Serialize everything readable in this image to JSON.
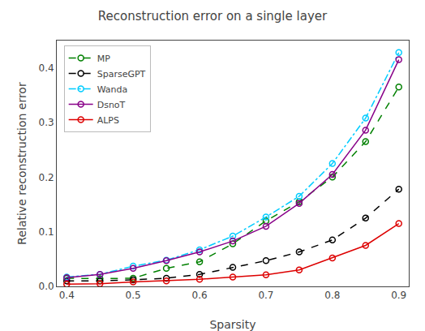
{
  "chart_data": {
    "type": "line",
    "title": "Reconstruction error on a single layer",
    "xlabel": "Sparsity",
    "ylabel": "Relative reconstruction error",
    "x": [
      0.4,
      0.45,
      0.5,
      0.55,
      0.6,
      0.65,
      0.7,
      0.75,
      0.8,
      0.85,
      0.9
    ],
    "series": [
      {
        "name": "MP",
        "color": "#008000",
        "line_style": "dashed",
        "marker": "circle",
        "values": [
          0.015,
          0.014,
          0.015,
          0.033,
          0.045,
          0.078,
          0.12,
          0.155,
          0.2,
          0.265,
          0.365
        ]
      },
      {
        "name": "SparseGPT",
        "color": "#000000",
        "line_style": "dashed",
        "marker": "circle",
        "values": [
          0.01,
          0.01,
          0.012,
          0.015,
          0.022,
          0.035,
          0.047,
          0.063,
          0.085,
          0.125,
          0.178
        ]
      },
      {
        "name": "Wanda",
        "color": "#00ccff",
        "line_style": "dashdot",
        "marker": "circle",
        "values": [
          0.017,
          0.022,
          0.037,
          0.048,
          0.067,
          0.092,
          0.127,
          0.165,
          0.225,
          0.308,
          0.428
        ]
      },
      {
        "name": "DsnoT",
        "color": "#880088",
        "line_style": "solid",
        "marker": "circle",
        "values": [
          0.016,
          0.022,
          0.033,
          0.047,
          0.063,
          0.083,
          0.11,
          0.152,
          0.205,
          0.286,
          0.415
        ]
      },
      {
        "name": "ALPS",
        "color": "#dd0000",
        "line_style": "solid",
        "marker": "circle",
        "values": [
          0.004,
          0.005,
          0.008,
          0.01,
          0.013,
          0.017,
          0.021,
          0.03,
          0.052,
          0.075,
          0.115
        ]
      }
    ],
    "xlim": [
      0.385,
      0.915
    ],
    "xticks": [
      0.4,
      0.5,
      0.6,
      0.7,
      0.8,
      0.9
    ],
    "ylim": [
      0.0,
      0.45
    ],
    "yticks": [
      {
        "value": 0.0,
        "label": "0.0"
      },
      0.1,
      0.2,
      0.3,
      0.4
    ],
    "grid": false,
    "legend": "upper left"
  }
}
